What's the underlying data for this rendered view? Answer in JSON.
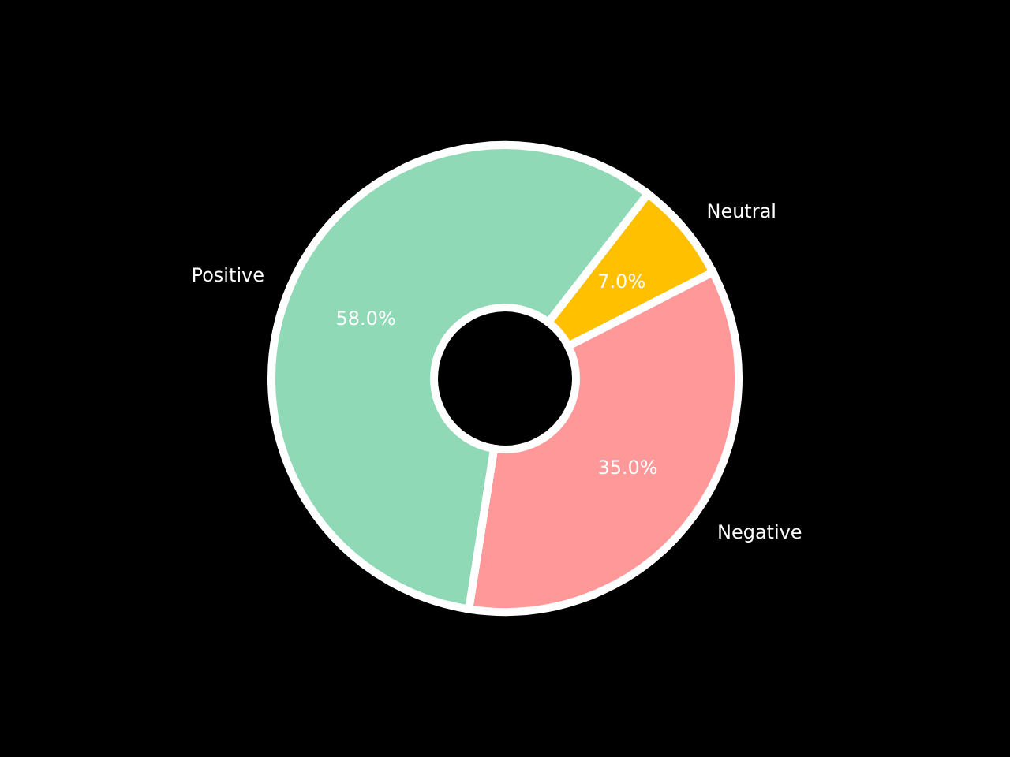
{
  "chart_data": {
    "type": "donut",
    "categories": [
      "Positive",
      "Negative",
      "Neutral"
    ],
    "values": [
      58,
      35,
      7
    ],
    "colors": [
      "#8fd9b6",
      "#ff9999",
      "#ffc000"
    ],
    "value_labels": [
      "58.0%",
      "35.0%",
      "7.0%"
    ]
  }
}
